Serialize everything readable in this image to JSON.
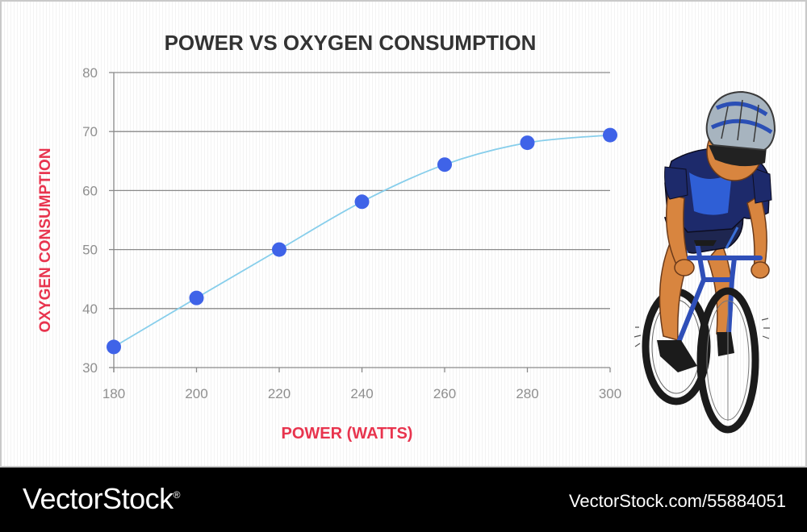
{
  "chart_data": {
    "type": "line",
    "title": "POWER VS OXYGEN CONSUMPTION",
    "xlabel": "POWER (WATTS)",
    "ylabel": "OXYGEN CONSUMPTION",
    "x": [
      180,
      200,
      220,
      240,
      260,
      280,
      300
    ],
    "series": [
      {
        "values": [
          33.5,
          41.8,
          50.0,
          58.1,
          64.4,
          68.1,
          69.4
        ]
      }
    ],
    "xticks": [
      "180",
      "200",
      "220",
      "240",
      "260",
      "280",
      "300"
    ],
    "yticks": [
      "30",
      "40",
      "50",
      "60",
      "70",
      "80"
    ],
    "xlim": [
      180,
      300
    ],
    "ylim": [
      30,
      80
    ],
    "grid": "horizontal",
    "colors": {
      "line": "#87ceeb",
      "marker": "#3f63e8",
      "grid": "#8a8a8a",
      "axis_title": "#e8344e",
      "title": "#333333",
      "tick": "#8f8f8f"
    }
  },
  "illustration": {
    "name": "cyclist-illustration"
  },
  "footer": {
    "brand": "VectorStock",
    "brand_mark": "®",
    "url": "VectorStock.com/55884051"
  }
}
